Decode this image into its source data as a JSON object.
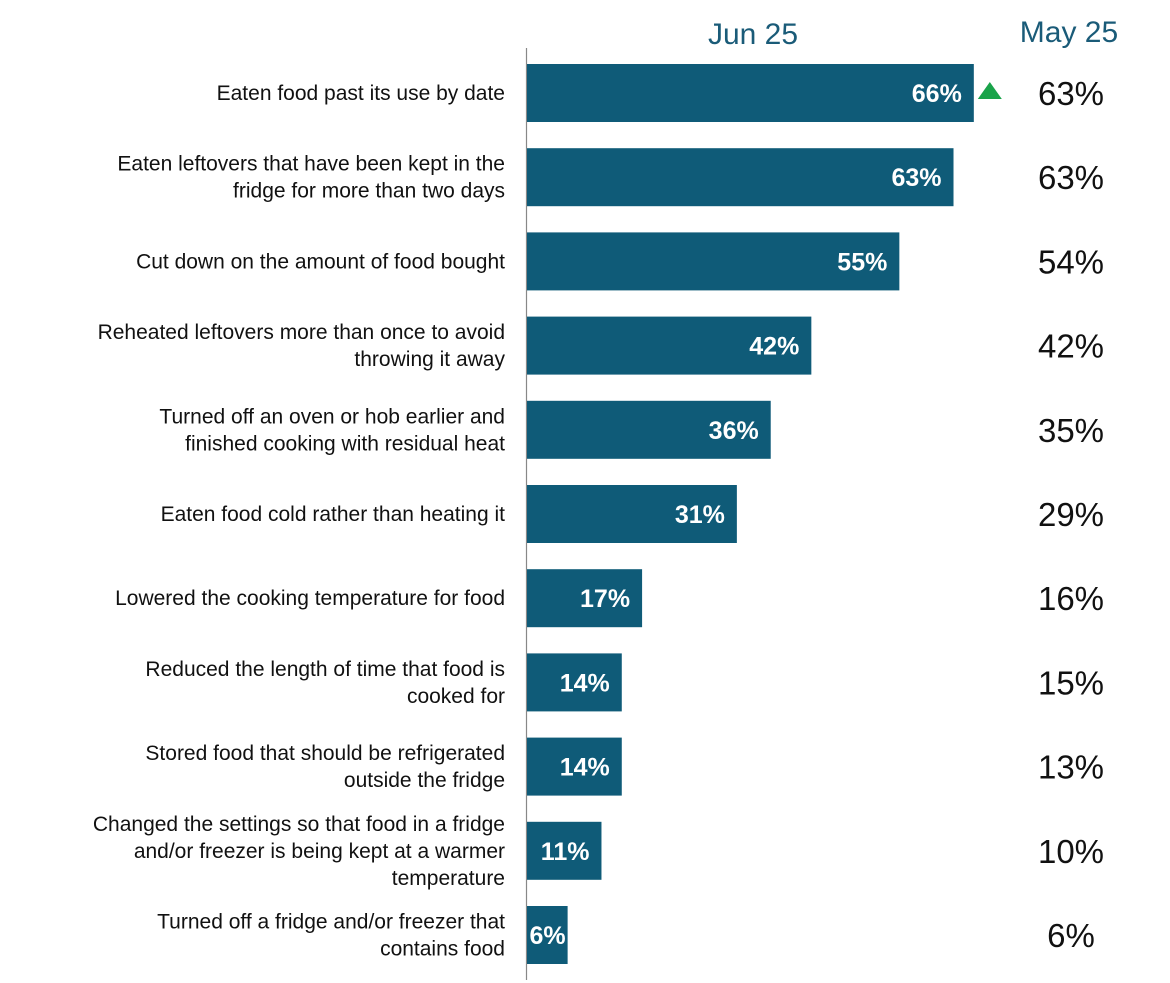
{
  "chart_data": {
    "type": "bar",
    "orientation": "horizontal",
    "categories": [
      [
        "Eaten food past its use by date"
      ],
      [
        "Eaten leftovers that have been kept in the",
        "fridge for more than two days"
      ],
      [
        "Cut down on the amount of food bought"
      ],
      [
        "Reheated leftovers more than once to avoid",
        "throwing it away"
      ],
      [
        "Turned off an oven or hob earlier and",
        "finished cooking with residual heat"
      ],
      [
        "Eaten food cold rather than heating it"
      ],
      [
        "Lowered the cooking temperature for food"
      ],
      [
        "Reduced the length of time that food is",
        "cooked for"
      ],
      [
        "Stored food that should be refrigerated",
        "outside the fridge"
      ],
      [
        "Changed the settings so that food in a fridge",
        "and/or freezer is being kept at a warmer",
        "temperature"
      ],
      [
        "Turned off a fridge and/or freezer that",
        "contains food"
      ]
    ],
    "series": [
      {
        "name": "Jun 25",
        "values": [
          66,
          63,
          55,
          42,
          36,
          31,
          17,
          14,
          14,
          11,
          6
        ],
        "labels": [
          "66%",
          "63%",
          "55%",
          "42%",
          "36%",
          "31%",
          "17%",
          "14%",
          "14%",
          "11%",
          "6%"
        ]
      },
      {
        "name": "May 25",
        "values": [
          63,
          63,
          54,
          42,
          35,
          29,
          16,
          15,
          13,
          10,
          6
        ],
        "labels": [
          "63%",
          "63%",
          "54%",
          "42%",
          "35%",
          "29%",
          "16%",
          "15%",
          "13%",
          "10%",
          "6%"
        ]
      }
    ],
    "significant_increase": [
      true,
      false,
      false,
      false,
      false,
      false,
      false,
      false,
      false,
      false,
      false
    ],
    "xlim": [
      0,
      100
    ],
    "grid": false
  },
  "colors": {
    "bar": "#0f5b78",
    "header": "#1a5b78",
    "axis": "#888888",
    "up_marker": "#1aa34a"
  }
}
